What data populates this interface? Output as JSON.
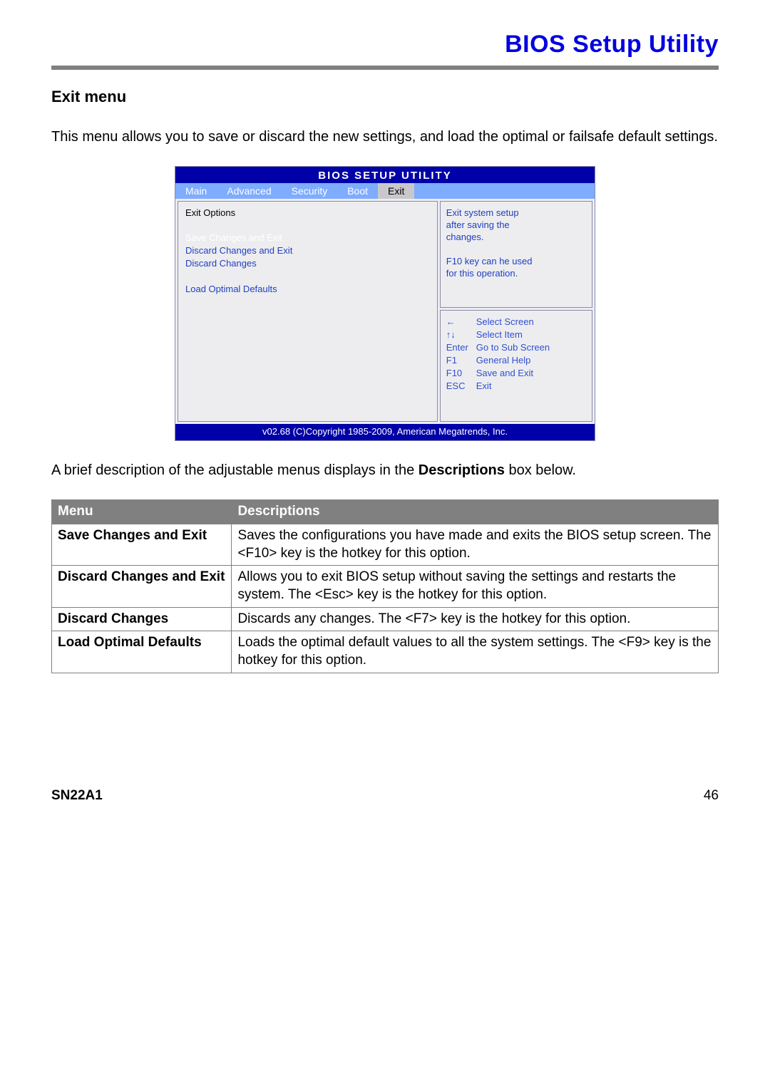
{
  "header": {
    "title": "BIOS Setup Utility"
  },
  "section": {
    "heading": "Exit menu",
    "intro": "This menu allows you to save or discard the new settings, and load the optimal or failsafe default settings.",
    "caption_prefix": "A brief description of the adjustable menus displays in the ",
    "caption_bold": "Descriptions",
    "caption_suffix": " box below."
  },
  "bios": {
    "title": "BIOS  SETUP  UTILITY",
    "tabs": [
      "Main",
      "Advanced",
      "Security",
      "Boot",
      "Exit"
    ],
    "active_tab": "Exit",
    "left_section": "Exit Options",
    "options": [
      {
        "label": "Save Changes and Exit",
        "selected": true
      },
      {
        "label": "Discard Changes and Exit",
        "selected": false
      },
      {
        "label": "Discard Changes",
        "selected": false
      },
      {
        "label": "",
        "selected": false
      },
      {
        "label": "Load Optimal Defaults",
        "selected": false
      }
    ],
    "help_top_lines": [
      "Exit system setup",
      "after saving the",
      "changes.",
      "",
      "F10 key can he used",
      "for this operation."
    ],
    "nav": [
      {
        "key": "←",
        "label": "Select Screen"
      },
      {
        "key": "↑↓",
        "label": "Select Item"
      },
      {
        "key": "Enter",
        "label": "Go to Sub Screen"
      },
      {
        "key": "F1",
        "label": "General Help"
      },
      {
        "key": "F10",
        "label": "Save and Exit"
      },
      {
        "key": "ESC",
        "label": "Exit"
      }
    ],
    "footer": "v02.68 (C)Copyright 1985-2009, American Megatrends, Inc."
  },
  "table": {
    "headers": [
      "Menu",
      "Descriptions"
    ],
    "rows": [
      {
        "menu": "Save Changes and Exit",
        "desc": "Saves the configurations you have made and exits the BIOS setup screen. The <F10> key is the hotkey for this option."
      },
      {
        "menu": "Discard Changes and Exit",
        "desc": "Allows you to exit BIOS setup without saving the settings and restarts the system. The <Esc> key is the hotkey for this option."
      },
      {
        "menu": "Discard Changes",
        "desc": "Discards any changes. The <F7> key is the hotkey for this option."
      },
      {
        "menu": "Load Optimal Defaults",
        "desc": "Loads the optimal default values to all the system settings. The <F9> key is the hotkey for this option."
      }
    ]
  },
  "footer": {
    "model": "SN22A1",
    "page": "46"
  },
  "colors": {
    "brand_blue": "#0000e0",
    "bios_tabbar": "#7eacff",
    "bios_dark": "#0000a8",
    "bios_panel": "#ededf0",
    "bios_text_blue": "#2040c0",
    "table_header_bg": "#808080",
    "rule_gray": "#808080"
  }
}
